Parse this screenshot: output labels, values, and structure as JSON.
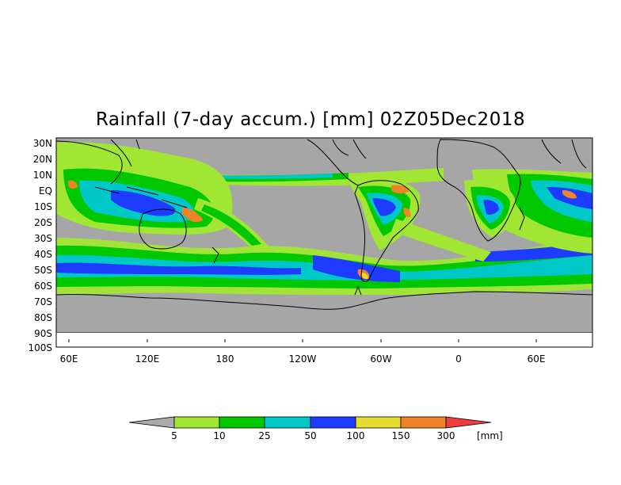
{
  "title": "Rainfall (7-day accum.) [mm] 02Z05Dec2018",
  "lat_labels": [
    "30N",
    "20N",
    "10N",
    "EQ",
    "10S",
    "20S",
    "30S",
    "40S",
    "50S",
    "60S",
    "70S",
    "80S",
    "90S",
    "100S"
  ],
  "lon_labels": [
    "60E",
    "120E",
    "180",
    "120W",
    "60W",
    "0",
    "60E"
  ],
  "colorbar": {
    "ticks": [
      "5",
      "10",
      "25",
      "50",
      "100",
      "150",
      "300"
    ],
    "unit": "[mm]",
    "colors": {
      "below": "#aaaaaa",
      "c1": "#a0e632",
      "c2": "#00c800",
      "c3": "#00c8c8",
      "c4": "#1e3cff",
      "c5": "#e6dc32",
      "c6": "#f08228",
      "above": "#f03c3c"
    }
  },
  "map_colors": {
    "dry": "#a6a6a6",
    "light": "#a0e632",
    "moderate": "#00c800",
    "heavy": "#00c8c8",
    "very_heavy": "#1e3cff",
    "extreme": "#f08228"
  }
}
